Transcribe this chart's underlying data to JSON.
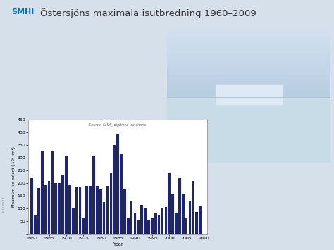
{
  "title": "Östersjöns maximala isutbredning 1960–2009",
  "source_text": "Source: SMHI, digitized ice charts",
  "xlabel": "Year",
  "ylabel": "Maximum ice extent ( 10² km²)",
  "years": [
    1960,
    1961,
    1962,
    1963,
    1964,
    1965,
    1966,
    1967,
    1968,
    1969,
    1970,
    1971,
    1972,
    1973,
    1974,
    1975,
    1976,
    1977,
    1978,
    1979,
    1980,
    1981,
    1982,
    1983,
    1984,
    1985,
    1986,
    1987,
    1988,
    1989,
    1990,
    1991,
    1992,
    1993,
    1994,
    1995,
    1996,
    1997,
    1998,
    1999,
    2000,
    2001,
    2002,
    2003,
    2004,
    2005,
    2006,
    2007,
    2008,
    2009
  ],
  "values": [
    220,
    75,
    180,
    325,
    195,
    210,
    325,
    200,
    200,
    235,
    310,
    195,
    100,
    185,
    185,
    60,
    190,
    190,
    305,
    190,
    175,
    125,
    190,
    240,
    350,
    395,
    315,
    175,
    60,
    130,
    80,
    55,
    115,
    100,
    55,
    60,
    80,
    75,
    100,
    105,
    240,
    155,
    80,
    220,
    155,
    65,
    130,
    210,
    85,
    110
  ],
  "bar_color": "#1a237e",
  "ylim": [
    0,
    450
  ],
  "yticks": [
    0,
    50,
    100,
    150,
    200,
    250,
    300,
    350,
    400,
    450
  ],
  "xtick_years": [
    1960,
    1965,
    1970,
    1975,
    1980,
    1985,
    1990,
    1995,
    2000,
    2005,
    2010
  ],
  "plot_bg": "#ffffff",
  "smhi_text": "SMHI",
  "smhi_color": "#0071bc",
  "title_color": "#333333",
  "slide_bg": "#d6e0eb",
  "chart_panel_bg": "#c8d6e0",
  "photo_sky_top": "#c8d8e8",
  "photo_sky_bottom": "#b0c4d8",
  "photo_ice": "#d8e8f0",
  "date_text": "2014-09-13"
}
